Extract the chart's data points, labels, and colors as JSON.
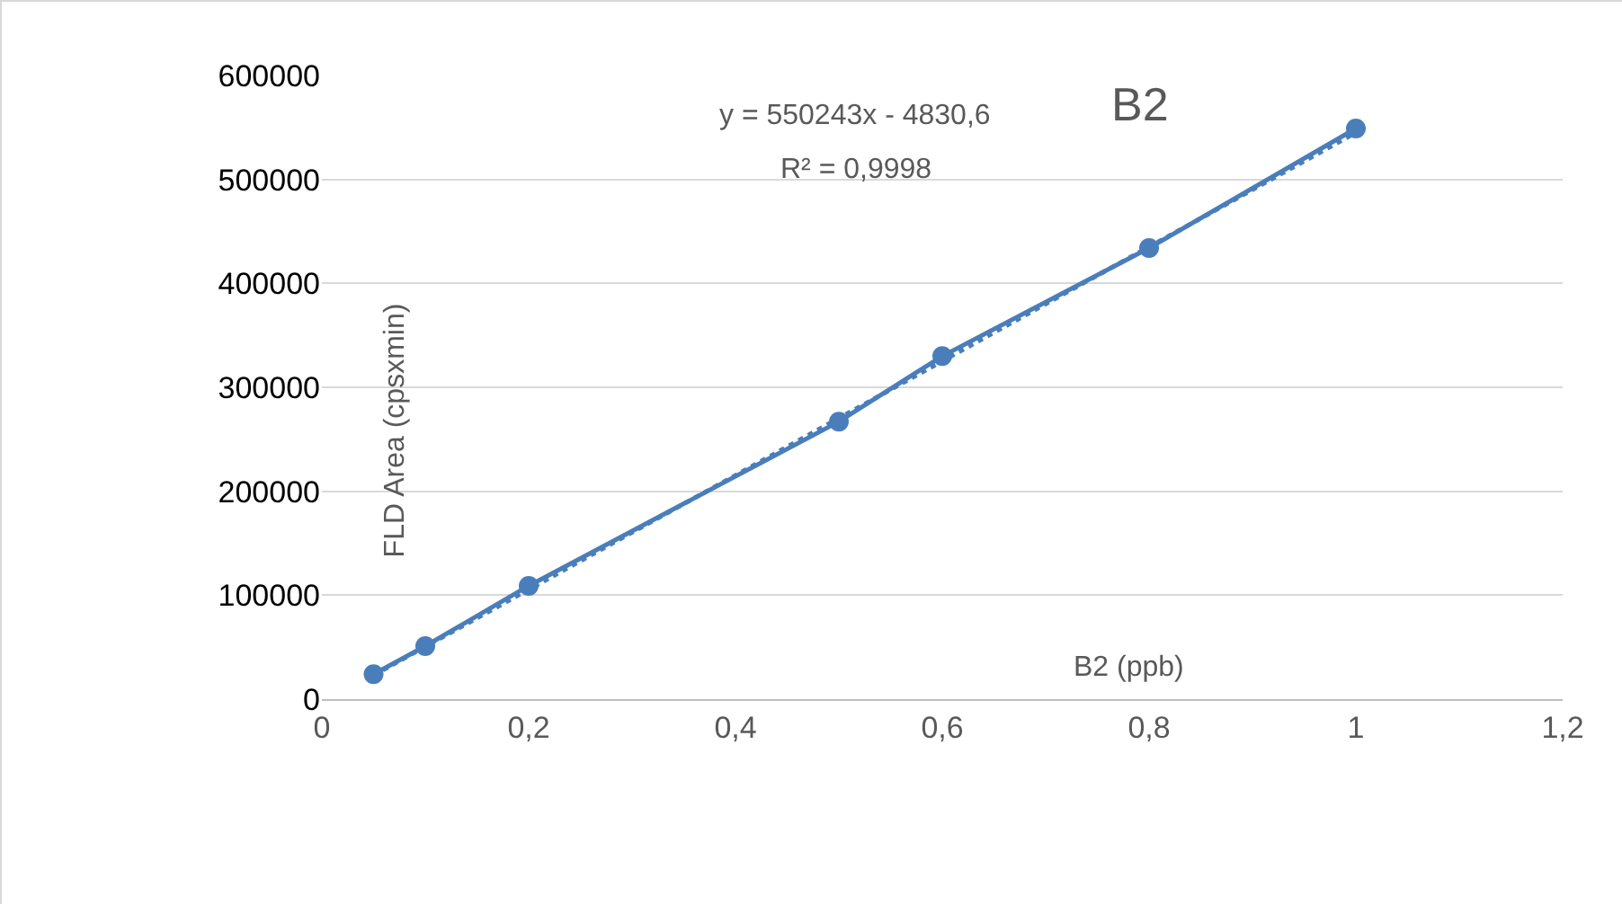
{
  "chart_data": {
    "type": "line",
    "title": "B2",
    "xlabel": "B2 (ppb)",
    "ylabel": "FLD Area (cpsxmin)",
    "annotations": [
      "y = 550243x - 4830,6",
      "R² = 0,9998"
    ],
    "series": [
      {
        "color": "#4a7ebb",
        "x": [
          0.05,
          0.1,
          0.2,
          0.5,
          0.6,
          0.8,
          1
        ],
        "values": [
          24000,
          51000,
          109000,
          267000,
          330000,
          434000,
          549000
        ],
        "marker": "circle",
        "line_style": "solid"
      },
      {
        "color": "#4a7ebb",
        "x": [
          0.05,
          1
        ],
        "values": [
          23000,
          545000
        ],
        "marker": "none",
        "line_style": "dotted"
      }
    ],
    "xlim": [
      0,
      1.2
    ],
    "xticks": [
      0,
      {
        "value": 0.2,
        "label": "0,2"
      },
      {
        "value": 0.4,
        "label": "0,4"
      },
      {
        "value": 0.6,
        "label": "0,6"
      },
      {
        "value": 0.8,
        "label": "0,8"
      },
      1,
      {
        "value": 1.2,
        "label": "1,2"
      }
    ],
    "ylim": [
      0,
      600000
    ],
    "yticks": [
      0,
      100000,
      200000,
      300000,
      400000,
      500000,
      600000
    ],
    "grid": "y"
  }
}
